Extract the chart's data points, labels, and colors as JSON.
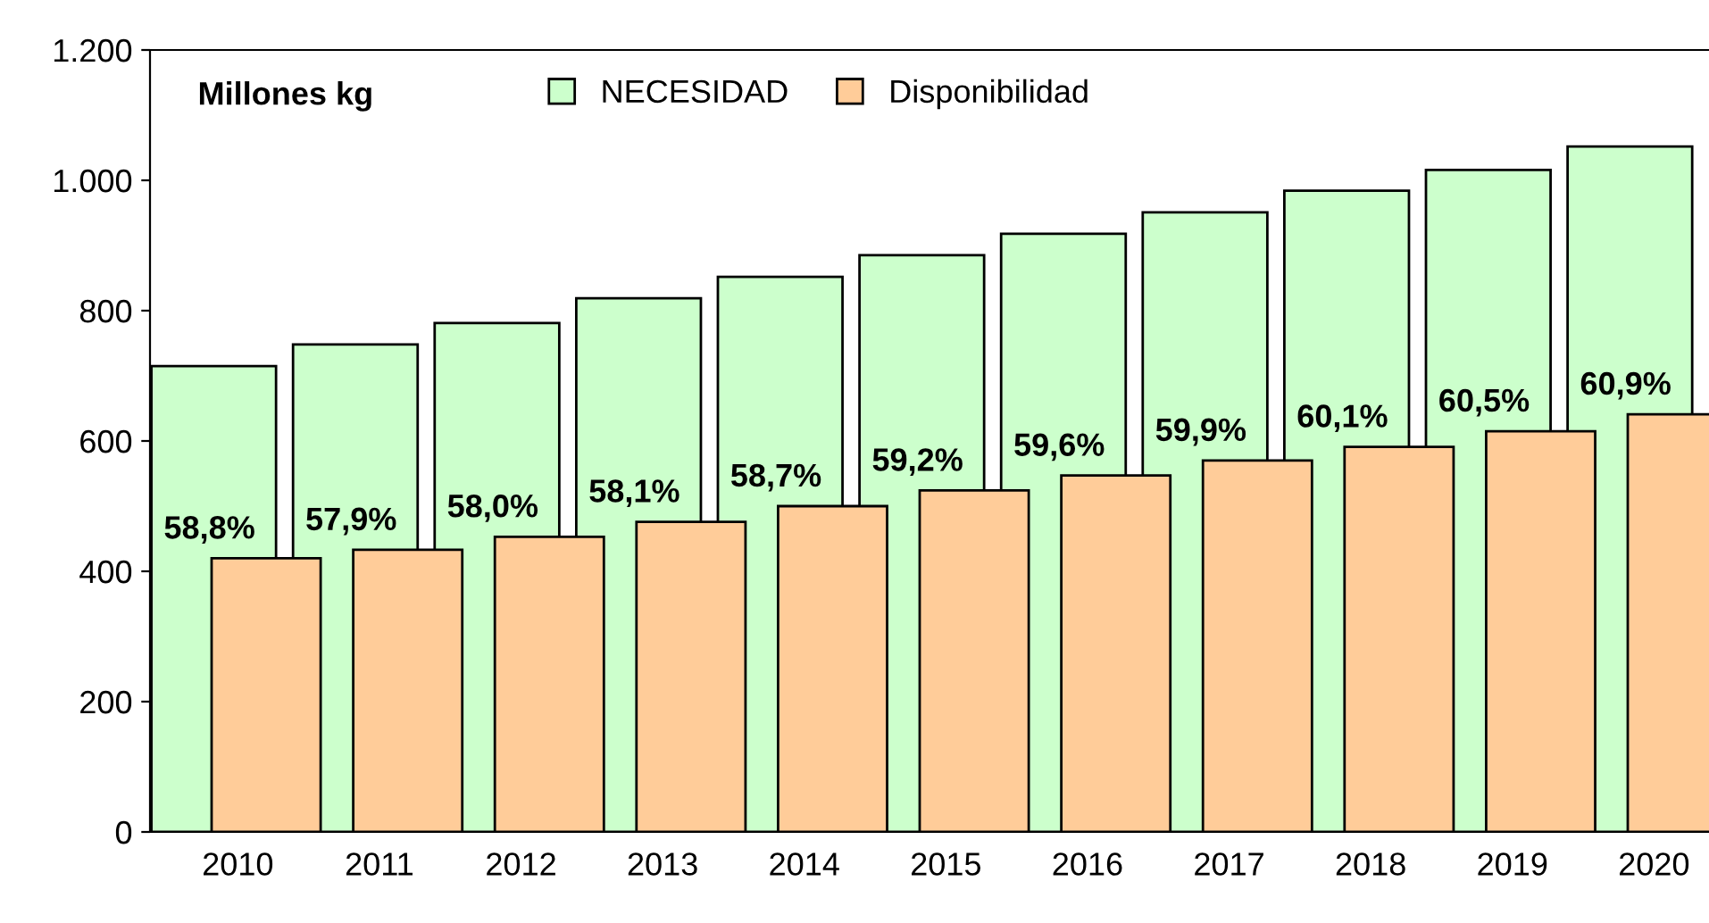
{
  "chart_data": {
    "type": "bar",
    "categories": [
      "2010",
      "2011",
      "2012",
      "2013",
      "2014",
      "2015",
      "2016",
      "2017",
      "2018",
      "2019",
      "2020"
    ],
    "series": [
      {
        "name": "NECESIDAD",
        "color": "#ccffcc",
        "values": [
          715,
          748,
          781,
          819,
          852,
          885,
          918,
          951,
          984,
          1016,
          1052
        ]
      },
      {
        "name": "Disponibilidad",
        "color": "#ffcc99",
        "values": [
          420,
          433,
          453,
          476,
          500,
          524,
          547,
          570,
          591,
          615,
          641
        ]
      }
    ],
    "ylim": [
      0,
      1200
    ],
    "yticks": [
      0,
      200,
      400,
      600,
      800,
      {
        "value": 1000,
        "label": "1.000"
      },
      {
        "value": 1200,
        "label": "1.200"
      }
    ],
    "annotations": [
      "Millones kg",
      {
        "text": "58,8%",
        "x": "2010",
        "y": 420
      },
      {
        "text": "57,9%",
        "x": "2011",
        "y": 433
      },
      {
        "text": "58,0%",
        "x": "2012",
        "y": 453
      },
      {
        "text": "58,1%",
        "x": "2013",
        "y": 476
      },
      {
        "text": "58,7%",
        "x": "2014",
        "y": 500
      },
      {
        "text": "59,2%",
        "x": "2015",
        "y": 524
      },
      {
        "text": "59,6%",
        "x": "2016",
        "y": 547
      },
      {
        "text": "59,9%",
        "x": "2017",
        "y": 570
      },
      {
        "text": "60,1%",
        "x": "2018",
        "y": 591
      },
      {
        "text": "60,5%",
        "x": "2019",
        "y": 615
      },
      {
        "text": "60,9%",
        "x": "2020",
        "y": 641
      }
    ],
    "legend": "top",
    "grid": false
  }
}
